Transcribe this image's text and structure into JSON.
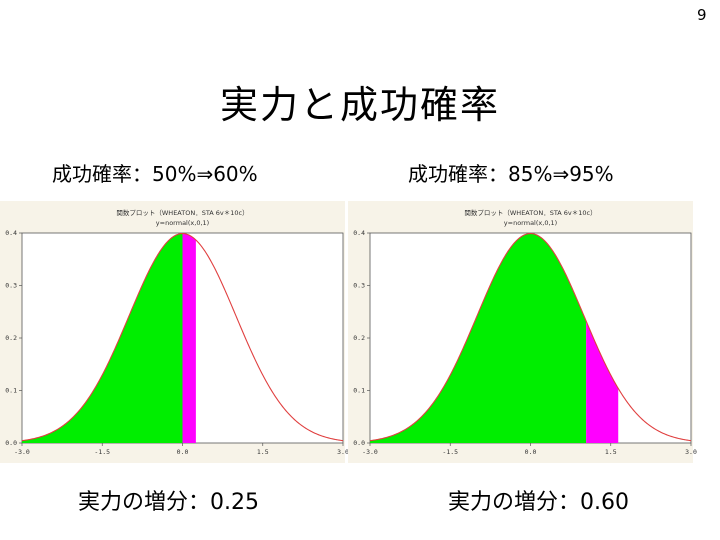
{
  "page_number": "9",
  "slide_title": "実力と成功確率",
  "panels": [
    {
      "heading": "成功確率：50%⇒60%",
      "caption": "実力の増分：0.25"
    },
    {
      "heading": "成功確率：85%⇒95%",
      "caption": "実力の増分：0.60"
    }
  ],
  "colors": {
    "curve": "#e04040",
    "fill_main": "#00ee00",
    "fill_increment": "#ff00ff",
    "panel_background": "#f7f3e8",
    "plot_background": "#ffffff"
  },
  "chart_data": [
    {
      "type": "area",
      "title": "関数プロット（WHEATON．STA 6v＊10c）",
      "subtitle": "y=normal(x,0,1)",
      "xlim": [
        -3.0,
        3.0
      ],
      "ylim": [
        0.0,
        0.4
      ],
      "x_ticks": [
        "-3.0",
        "-1.5",
        "0.0",
        "1.5",
        "3.0"
      ],
      "y_ticks": [
        "0.0",
        "0.1",
        "0.2",
        "0.3",
        "0.4"
      ],
      "grid": false,
      "curve": "normal(x,0,1)",
      "series": [
        {
          "name": "green",
          "x_from": -3.0,
          "x_to": 0.0
        },
        {
          "name": "magenta",
          "x_from": 0.0,
          "x_to": 0.25
        }
      ]
    },
    {
      "type": "area",
      "title": "関数プロット（WHEATON．STA 6v＊10c）",
      "subtitle": "y=normal(x,0,1)",
      "xlim": [
        -3.0,
        3.0
      ],
      "ylim": [
        0.0,
        0.4
      ],
      "x_ticks": [
        "-3.0",
        "-1.5",
        "0.0",
        "1.5",
        "3.0"
      ],
      "y_ticks": [
        "0.0",
        "0.1",
        "0.2",
        "0.3",
        "0.4"
      ],
      "grid": false,
      "curve": "normal(x,0,1)",
      "series": [
        {
          "name": "green",
          "x_from": -3.0,
          "x_to": 1.04
        },
        {
          "name": "magenta",
          "x_from": 1.04,
          "x_to": 1.64
        }
      ]
    }
  ]
}
